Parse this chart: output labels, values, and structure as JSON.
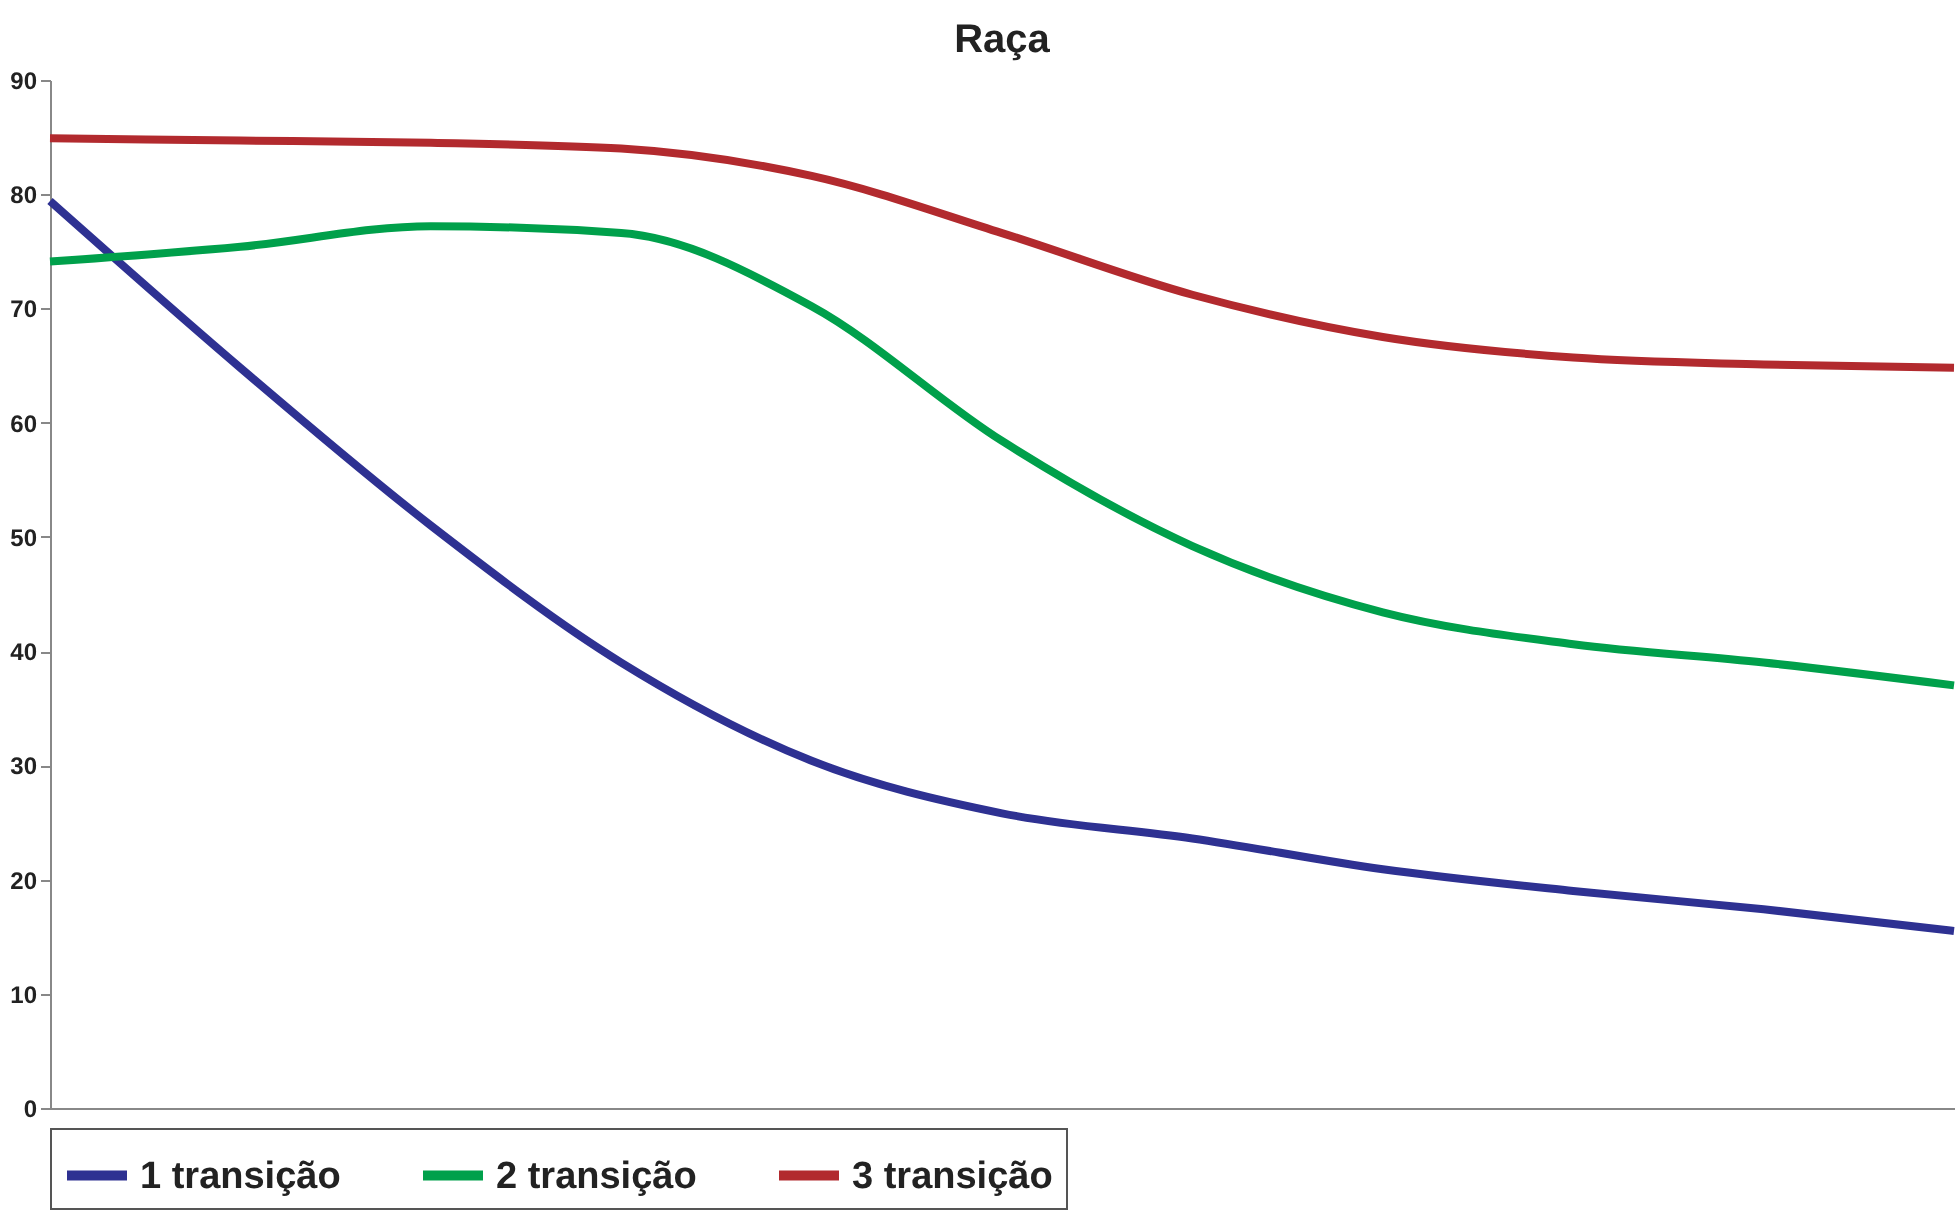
{
  "chart_data": {
    "type": "line",
    "title": "Raça",
    "categories": [
      null,
      null,
      null,
      null,
      null,
      null,
      null,
      null,
      null,
      null,
      null
    ],
    "series": [
      {
        "name": "1 transição",
        "color": "#2e3192",
        "values": [
          79.4,
          64.8,
          51,
          39,
          30.4,
          25.8,
          23.6,
          20.9,
          19,
          17.4,
          15.5
        ]
      },
      {
        "name": "2 transição",
        "color": "#00a04b",
        "values": [
          74.1,
          75.4,
          77.2,
          76.6,
          70.2,
          58.4,
          49.2,
          43.4,
          40.6,
          39,
          37
        ]
      },
      {
        "name": "3 transição",
        "color": "#b22a2e",
        "values": [
          84.9,
          84.7,
          84.5,
          84,
          81.6,
          76.6,
          71.2,
          67.5,
          65.7,
          65.1,
          64.8
        ]
      }
    ],
    "ylim": [
      0,
      90
    ],
    "yticks": [
      0,
      10,
      20,
      30,
      40,
      50,
      60,
      70,
      80,
      90
    ],
    "grid": false,
    "legend": "bottom",
    "marker": "none",
    "line_style": "solid"
  }
}
